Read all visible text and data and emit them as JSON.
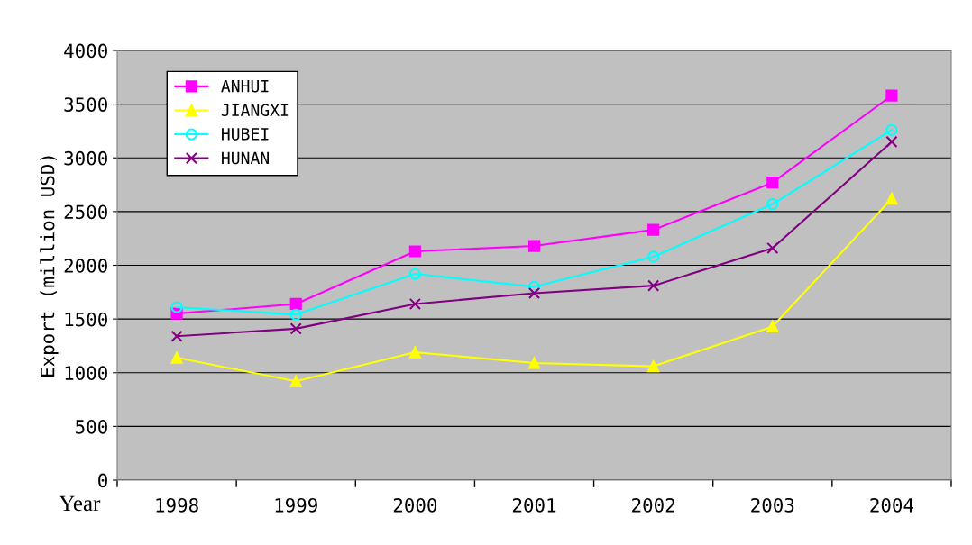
{
  "chart_data": {
    "type": "line",
    "xlabel": "Year",
    "ylabel": "Export (million USD)",
    "categories": [
      "1998",
      "1999",
      "2000",
      "2001",
      "2002",
      "2003",
      "2004"
    ],
    "ylim": [
      0,
      4000
    ],
    "yticks": [
      0,
      500,
      1000,
      1500,
      2000,
      2500,
      3000,
      3500,
      4000
    ],
    "grid": "y",
    "legend": "top left",
    "line_style": "solid",
    "series": [
      {
        "name": "ANHUI",
        "color": "#ff00ff",
        "marker": "square",
        "values": [
          1550,
          1640,
          2130,
          2180,
          2330,
          2770,
          3580
        ]
      },
      {
        "name": "JIANGXI",
        "color": "#ffff00",
        "marker": "triangle",
        "values": [
          1140,
          920,
          1190,
          1090,
          1060,
          1430,
          2620
        ]
      },
      {
        "name": "HUBEI",
        "color": "#00ffff",
        "marker": "circle",
        "values": [
          1610,
          1540,
          1920,
          1800,
          2080,
          2570,
          3260
        ]
      },
      {
        "name": "HUNAN",
        "color": "#800080",
        "marker": "cross",
        "values": [
          1340,
          1410,
          1640,
          1740,
          1810,
          2160,
          3150
        ]
      }
    ]
  }
}
